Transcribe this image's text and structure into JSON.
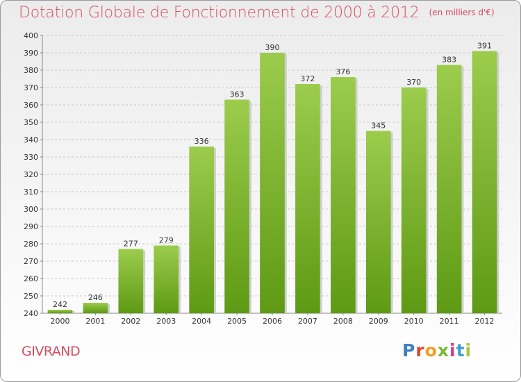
{
  "header": {
    "title": "Dotation Globale de Fonctionnement de 2000 à 2012",
    "subtitle": "(en milliers d'€)"
  },
  "footer": {
    "city": "GIVRAND",
    "logo_text": "Proxiti"
  },
  "colors": {
    "title": "#d64b5f",
    "bar_top": "#9ccc4c",
    "bar_bottom": "#5e9a14",
    "grid": "#c8c8c8",
    "logo": [
      "#3f7fc2",
      "#e3422b",
      "#f0a020",
      "#7ab93a",
      "#d63a88",
      "#3f9fd0",
      "#a6c83a"
    ]
  },
  "chart_data": {
    "type": "bar",
    "title": "Dotation Globale de Fonctionnement de 2000 à 2012",
    "subtitle": "(en milliers d'€)",
    "xlabel": "",
    "ylabel": "",
    "categories": [
      "2000",
      "2001",
      "2002",
      "2003",
      "2004",
      "2005",
      "2006",
      "2007",
      "2008",
      "2009",
      "2010",
      "2011",
      "2012"
    ],
    "values": [
      242,
      246,
      277,
      279,
      336,
      363,
      390,
      372,
      376,
      345,
      370,
      383,
      391
    ],
    "ylim": [
      240,
      400
    ],
    "yticks": [
      240,
      250,
      260,
      270,
      280,
      290,
      300,
      310,
      320,
      330,
      340,
      350,
      360,
      370,
      380,
      390,
      400
    ],
    "grid": true,
    "data_labels": true
  }
}
